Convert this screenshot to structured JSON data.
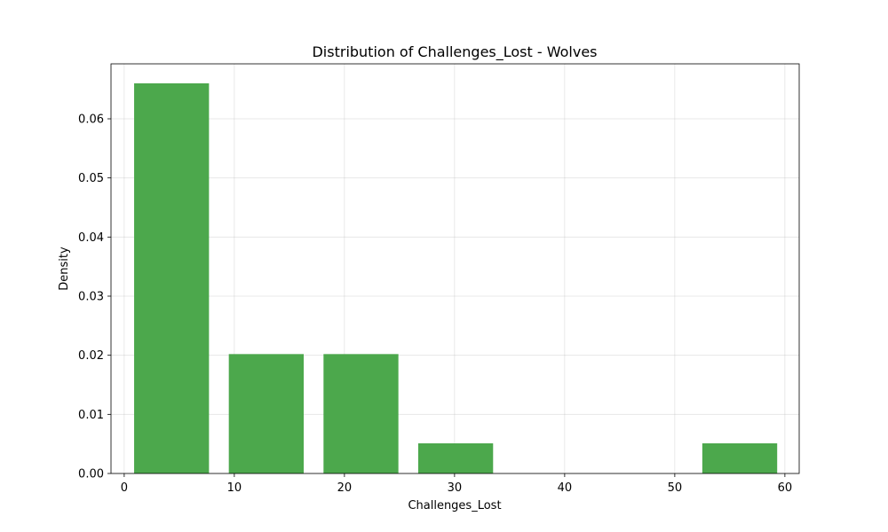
{
  "chart_data": {
    "type": "bar",
    "title": "Distribution of Challenges_Lost - Wolves",
    "xlabel": "Challenges_Lost",
    "ylabel": "Density",
    "xlim": [
      -1.2,
      61.3
    ],
    "ylim": [
      0,
      0.0693
    ],
    "xticks": [
      0,
      10,
      20,
      30,
      40,
      50,
      60
    ],
    "yticks": [
      0.0,
      0.01,
      0.02,
      0.03,
      0.04,
      0.05,
      0.06
    ],
    "ytick_labels": [
      "0.00",
      "0.01",
      "0.02",
      "0.03",
      "0.04",
      "0.05",
      "0.06"
    ],
    "grid": true,
    "bar_color": "#4ca84c",
    "bins": [
      {
        "x0": 0.9,
        "x1": 7.7,
        "value": 0.066
      },
      {
        "x0": 9.5,
        "x1": 16.3,
        "value": 0.0202
      },
      {
        "x0": 18.1,
        "x1": 24.9,
        "value": 0.0202
      },
      {
        "x0": 26.7,
        "x1": 33.5,
        "value": 0.0051
      },
      {
        "x0": 52.5,
        "x1": 59.3,
        "value": 0.0051
      }
    ]
  }
}
